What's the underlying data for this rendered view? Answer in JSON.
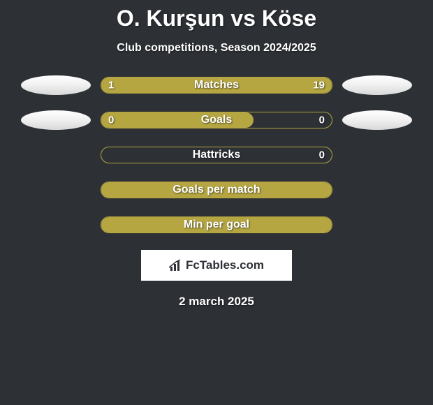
{
  "title": "O. Kurşun vs Köse",
  "subtitle": "Club competitions, Season 2024/2025",
  "date": "2 march 2025",
  "logo": {
    "text": "FcTables.com"
  },
  "colors": {
    "background": "#2d3035",
    "bar_fill": "#b5a642",
    "bar_border": "#b5a642",
    "text": "#ffffff",
    "avatar": "#ffffff"
  },
  "rows": [
    {
      "label": "Matches",
      "left_value": "1",
      "right_value": "19",
      "left_pct": 18,
      "right_pct": 82,
      "show_avatars": true,
      "show_values": true
    },
    {
      "label": "Goals",
      "left_value": "0",
      "right_value": "0",
      "left_pct": 66,
      "right_pct": 0,
      "show_avatars": true,
      "show_values": true,
      "left_only": true
    },
    {
      "label": "Hattricks",
      "left_value": "",
      "right_value": "0",
      "left_pct": 0,
      "right_pct": 0,
      "show_avatars": false,
      "show_values": true,
      "right_only_value": true
    },
    {
      "label": "Goals per match",
      "left_value": "",
      "right_value": "",
      "left_pct": 100,
      "right_pct": 0,
      "show_avatars": false,
      "show_values": false,
      "full": true
    },
    {
      "label": "Min per goal",
      "left_value": "",
      "right_value": "",
      "left_pct": 100,
      "right_pct": 0,
      "show_avatars": false,
      "show_values": false,
      "full": true
    }
  ]
}
